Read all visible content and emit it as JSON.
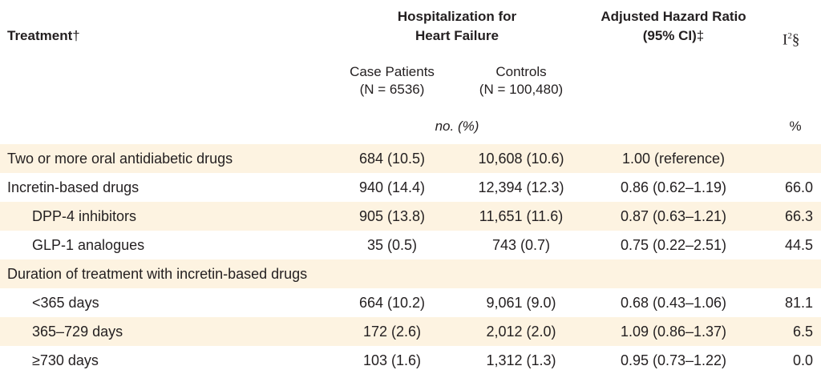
{
  "header": {
    "treatment": "Treatment",
    "treatment_mark": "†",
    "hosp_line1": "Hospitalization for",
    "hosp_line2": "Heart Failure",
    "hr_line1": "Adjusted Hazard Ratio",
    "hr_line2": "(95% CI)",
    "hr_mark": "‡",
    "i2_base": "I",
    "i2_sup": "2",
    "i2_mark": "§"
  },
  "subheader": {
    "case_line1": "Case Patients",
    "case_line2": "(N = 6536)",
    "ctrl_line1": "Controls",
    "ctrl_line2": "(N = 100,480)",
    "units_left": "no. (%)",
    "units_right": "%"
  },
  "rows": [
    {
      "label": "Two or more oral antidiabetic drugs",
      "case": "684 (10.5)",
      "ctrl": "10,608 (10.6)",
      "hr": "1.00 (reference)",
      "i2": ""
    },
    {
      "label": "Incretin-based drugs",
      "case": "940 (14.4)",
      "ctrl": "12,394 (12.3)",
      "hr": "0.86 (0.62–1.19)",
      "i2": "66.0"
    },
    {
      "label": "DPP-4 inhibitors",
      "case": "905 (13.8)",
      "ctrl": "11,651 (11.6)",
      "hr": "0.87 (0.63–1.21)",
      "i2": "66.3"
    },
    {
      "label": "GLP-1 analogues",
      "case": "35 (0.5)",
      "ctrl": "743 (0.7)",
      "hr": "0.75 (0.22–2.51)",
      "i2": "44.5"
    },
    {
      "label": "Duration of treatment with incretin-based drugs",
      "case": "",
      "ctrl": "",
      "hr": "",
      "i2": ""
    },
    {
      "label": "<365 days",
      "case": "664 (10.2)",
      "ctrl": "9,061 (9.0)",
      "hr": "0.68 (0.43–1.06)",
      "i2": "81.1"
    },
    {
      "label": "365–729 days",
      "case": "172 (2.6)",
      "ctrl": "2,012 (2.0)",
      "hr": "1.09 (0.86–1.37)",
      "i2": "6.5"
    },
    {
      "label": "≥730 days",
      "case": "103 (1.6)",
      "ctrl": "1,312 (1.3)",
      "hr": "0.95 (0.73–1.22)",
      "i2": "0.0"
    }
  ]
}
